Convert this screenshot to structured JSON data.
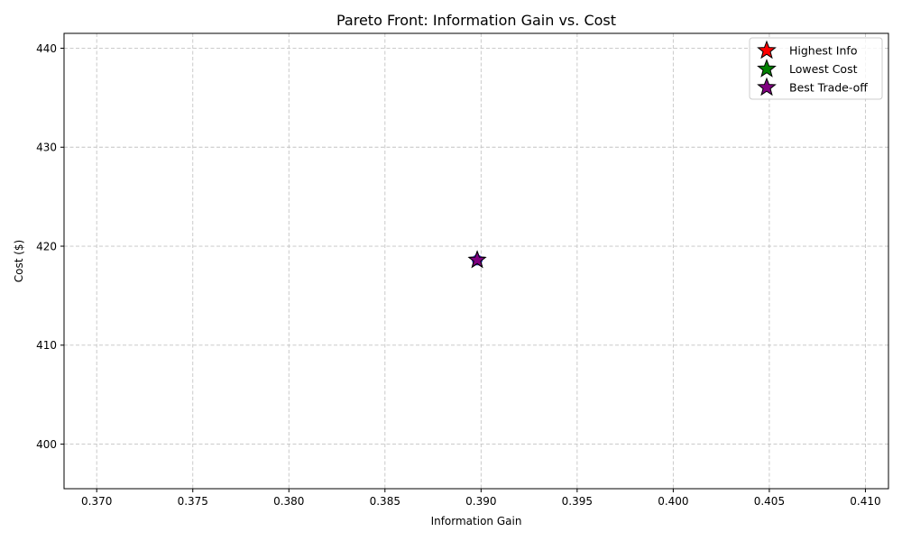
{
  "chart_data": {
    "type": "scatter",
    "title": "Pareto Front: Information Gain vs. Cost",
    "xlabel": "Information Gain",
    "ylabel": "Cost ($)",
    "xlim": [
      0.3683,
      0.4112
    ],
    "ylim": [
      395.5,
      441.5
    ],
    "xticks": [
      0.37,
      0.375,
      0.38,
      0.385,
      0.39,
      0.395,
      0.4,
      0.405,
      0.41
    ],
    "xtick_labels": [
      "0.370",
      "0.375",
      "0.380",
      "0.385",
      "0.390",
      "0.395",
      "0.400",
      "0.405",
      "0.410"
    ],
    "yticks": [
      400,
      410,
      420,
      430,
      440
    ],
    "ytick_labels": [
      "400",
      "410",
      "420",
      "430",
      "440"
    ],
    "grid": true,
    "legend_position": "top-right",
    "points": [
      {
        "x": 0.3898,
        "y": 418.6,
        "color": "#0000ff"
      }
    ],
    "highlights": [
      {
        "name": "Highest Info",
        "x": 0.3898,
        "y": 418.6,
        "color": "#ff0000"
      },
      {
        "name": "Lowest Cost",
        "x": 0.3898,
        "y": 418.6,
        "color": "#008000"
      },
      {
        "name": "Best Trade-off",
        "x": 0.3898,
        "y": 418.6,
        "color": "#800080"
      }
    ]
  }
}
